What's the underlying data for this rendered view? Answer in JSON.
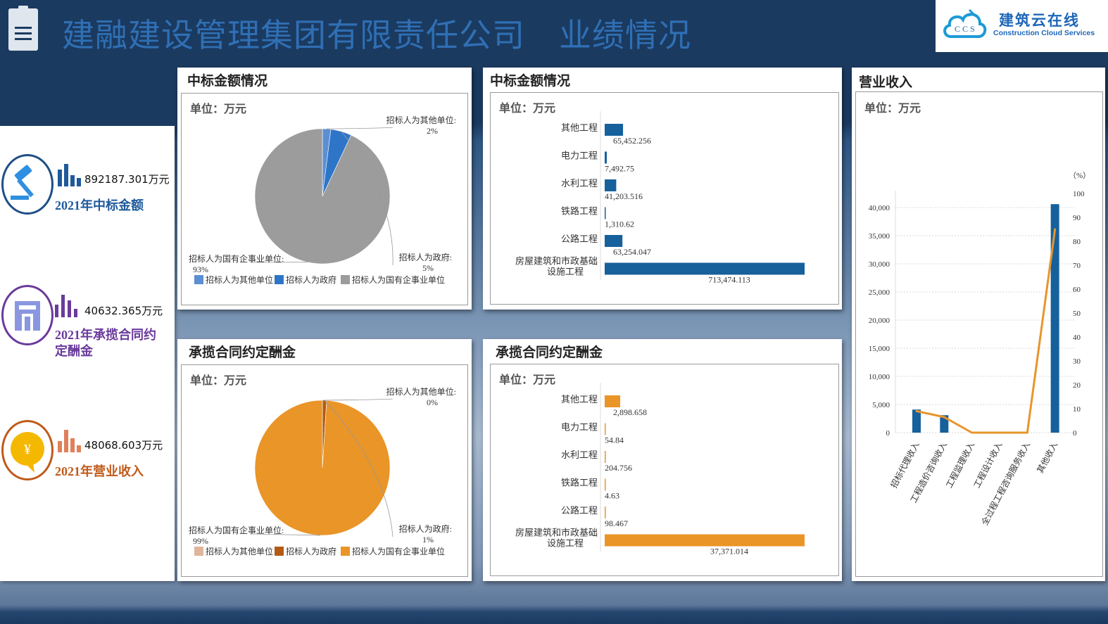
{
  "header": {
    "company": "建融建设管理集团有限责任公司",
    "section": "业绩情况",
    "logo_cn": "建筑云在线",
    "logo_en": "Construction Cloud Services",
    "logo_mark": "CCS"
  },
  "kpis": [
    {
      "value": "892187.301万元",
      "label": "2021年中标金额",
      "icon": "gavel-icon",
      "color": "#1e5a9c"
    },
    {
      "value": "40632.365万元",
      "label": "2021年承揽合同约定酬金",
      "icon": "building-icon",
      "color": "#6a3a9c"
    },
    {
      "value": "48068.603万元",
      "label": "2021年营业收入",
      "icon": "coin-icon",
      "color": "#c05a1a"
    }
  ],
  "panels": {
    "pie1_title": "中标金额情况",
    "bar1_title": "中标金额情况",
    "pie2_title": "承揽合同约定酬金",
    "bar2_title": "承揽合同约定酬金",
    "combo_title": "营业收入",
    "unit": "单位：万元"
  },
  "chart_data": [
    {
      "type": "pie",
      "title": "中标金额情况",
      "labels": [
        "招标人为其他单位",
        "招标人为政府",
        "招标人为国有企事业单位"
      ],
      "values": [
        2,
        5,
        93
      ],
      "colors": [
        "#5b8fd2",
        "#2e75c8",
        "#9c9c9c"
      ],
      "callouts": [
        "招标人为其他单位:2%",
        "招标人为政府:5%",
        "招标人为国有企事业单位:93%"
      ],
      "legend": "bottom"
    },
    {
      "type": "bar",
      "orientation": "horizontal",
      "title": "中标金额情况",
      "categories": [
        "其他工程",
        "电力工程",
        "水利工程",
        "铁路工程",
        "公路工程",
        "房屋建筑和市政基础设施工程"
      ],
      "values": [
        65452.256,
        7492.75,
        41203.516,
        1310.62,
        63254.047,
        713474.113
      ],
      "value_labels": [
        "65,452.256",
        "7,492.75",
        "41,203.516",
        "1,310.62",
        "63,254.047",
        "713,474.113"
      ],
      "color": "#16609c"
    },
    {
      "type": "pie",
      "title": "承揽合同约定酬金",
      "labels": [
        "招标人为其他单位",
        "招标人为政府",
        "招标人为国有企事业单位"
      ],
      "values": [
        0,
        1,
        99
      ],
      "colors": [
        "#e0b49a",
        "#b35a14",
        "#ea9528"
      ],
      "callouts": [
        "招标人为其他单位:0%",
        "招标人为政府:1%",
        "招标人为国有企事业单位:99%"
      ],
      "legend": "bottom"
    },
    {
      "type": "bar",
      "orientation": "horizontal",
      "title": "承揽合同约定酬金",
      "categories": [
        "其他工程",
        "电力工程",
        "水利工程",
        "铁路工程",
        "公路工程",
        "房屋建筑和市政基础设施工程"
      ],
      "values": [
        2898.658,
        54.84,
        204.756,
        4.63,
        98.467,
        37371.014
      ],
      "value_labels": [
        "2,898.658",
        "54.84",
        "204.756",
        "4.63",
        "98.467",
        "37,371.014"
      ],
      "color": "#ea9528"
    },
    {
      "type": "bar+line",
      "title": "营业收入",
      "categories": [
        "招标代理收入",
        "工程造价咨询收入",
        "工程监理收入",
        "工程设计收入",
        "全过程工程咨询服务收入",
        "其他收入"
      ],
      "bar_values": [
        4100,
        3100,
        0,
        0,
        0,
        40600
      ],
      "line_values_percent": [
        9,
        6.5,
        0,
        0,
        0,
        85
      ],
      "ylim": [
        0,
        40000
      ],
      "yticks": [
        "0",
        "5,000",
        "10,000",
        "15,000",
        "20,000",
        "25,000",
        "30,000",
        "35,000",
        "40,000"
      ],
      "y2lim": [
        0,
        100
      ],
      "y2ticks": [
        "0",
        "10",
        "20",
        "30",
        "40",
        "50",
        "60",
        "70",
        "80",
        "90",
        "100"
      ],
      "y2label": "（%）",
      "bar_color": "#16609c",
      "line_color": "#e8952b",
      "grid": true
    }
  ]
}
